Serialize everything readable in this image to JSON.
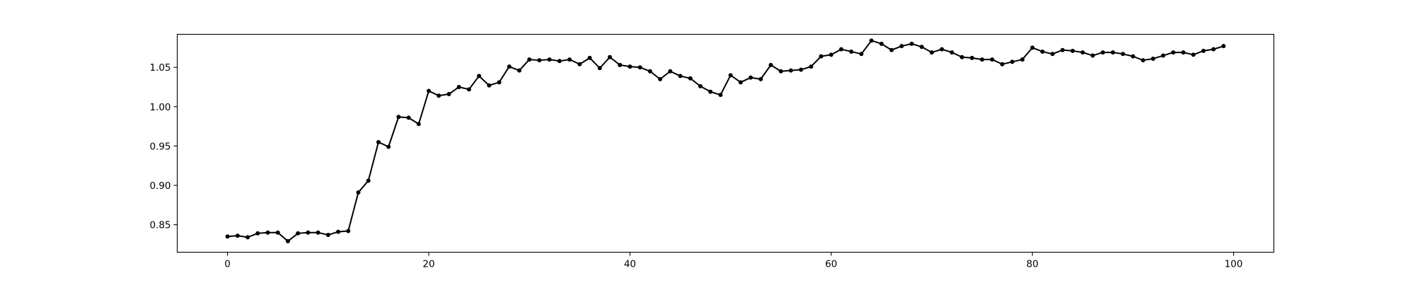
{
  "chart_data": {
    "type": "line",
    "title": "",
    "xlabel": "",
    "ylabel": "",
    "xlim": [
      -5,
      104
    ],
    "ylim": [
      0.815,
      1.092
    ],
    "xticks": [
      0,
      20,
      40,
      60,
      80,
      100
    ],
    "xtick_labels": [
      "0",
      "20",
      "40",
      "60",
      "80",
      "100"
    ],
    "yticks": [
      0.85,
      0.9,
      0.95,
      1.0,
      1.05
    ],
    "ytick_labels": [
      "0.85",
      "0.90",
      "0.95",
      "1.00",
      "1.05"
    ],
    "grid": false,
    "legend": "none",
    "line_color": "#000000",
    "marker": "circle",
    "series": [
      {
        "x": [
          0,
          1,
          2,
          3,
          4,
          5,
          6,
          7,
          8,
          9,
          10,
          11,
          12,
          13,
          14,
          15,
          16,
          17,
          18,
          19,
          20,
          21,
          22,
          23,
          24,
          25,
          26,
          27,
          28,
          29,
          30,
          31,
          32,
          33,
          34,
          35,
          36,
          37,
          38,
          39,
          40,
          41,
          42,
          43,
          44,
          45,
          46,
          47,
          48,
          49,
          50,
          51,
          52,
          53,
          54,
          55,
          56,
          57,
          58,
          59,
          60,
          61,
          62,
          63,
          64,
          65,
          66,
          67,
          68,
          69,
          70,
          71,
          72,
          73,
          74,
          75,
          76,
          77,
          78,
          79,
          80,
          81,
          82,
          83,
          84,
          85,
          86,
          87,
          88,
          89,
          90,
          91,
          92,
          93,
          94,
          95,
          96,
          97,
          98,
          99
        ],
        "values": [
          0.835,
          0.836,
          0.834,
          0.839,
          0.84,
          0.84,
          0.829,
          0.839,
          0.84,
          0.84,
          0.837,
          0.841,
          0.842,
          0.891,
          0.906,
          0.955,
          0.949,
          0.987,
          0.986,
          0.978,
          1.02,
          1.014,
          1.016,
          1.025,
          1.022,
          1.039,
          1.027,
          1.031,
          1.051,
          1.046,
          1.06,
          1.059,
          1.06,
          1.058,
          1.06,
          1.054,
          1.062,
          1.049,
          1.063,
          1.053,
          1.051,
          1.05,
          1.045,
          1.035,
          1.045,
          1.039,
          1.036,
          1.026,
          1.019,
          1.015,
          1.04,
          1.031,
          1.037,
          1.035,
          1.053,
          1.045,
          1.046,
          1.047,
          1.051,
          1.064,
          1.066,
          1.073,
          1.07,
          1.067,
          1.084,
          1.08,
          1.072,
          1.077,
          1.08,
          1.076,
          1.069,
          1.073,
          1.069,
          1.063,
          1.062,
          1.06,
          1.06,
          1.054,
          1.057,
          1.06,
          1.075,
          1.07,
          1.067,
          1.072,
          1.071,
          1.069,
          1.065,
          1.069,
          1.069,
          1.067,
          1.064,
          1.059,
          1.061,
          1.065,
          1.069,
          1.069,
          1.066,
          1.071,
          1.073,
          1.077
        ]
      }
    ]
  }
}
